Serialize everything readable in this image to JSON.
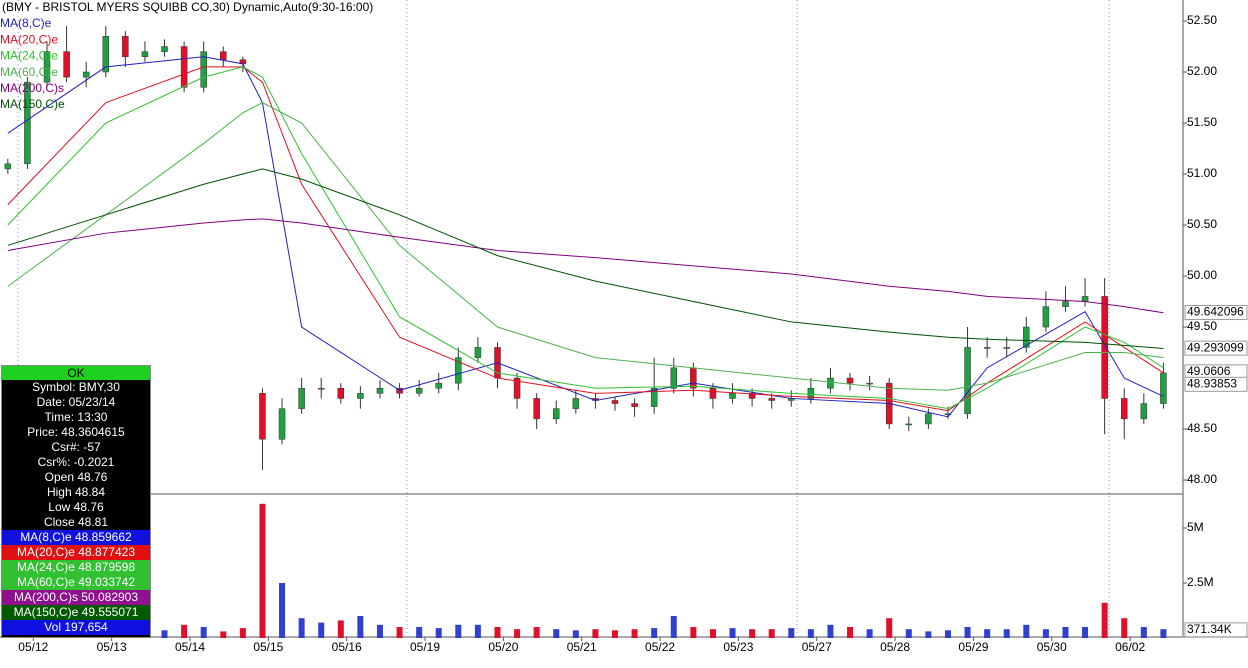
{
  "chart_data": {
    "type": "candlestick",
    "title": "(BMY - BRISTOL MYERS SQUIBB CO,30) Dynamic,Auto(9:30-16:00)",
    "xlim": [
      -0.4,
      60
    ],
    "xticks": [
      {
        "value": 1.3,
        "label": "05/12"
      },
      {
        "value": 5.3,
        "label": "05/13"
      },
      {
        "value": 9.3,
        "label": "05/14"
      },
      {
        "value": 13.3,
        "label": "05/15"
      },
      {
        "value": 17.3,
        "label": "05/16"
      },
      {
        "value": 21.3,
        "label": "05/19"
      },
      {
        "value": 25.3,
        "label": "05/20"
      },
      {
        "value": 29.3,
        "label": "05/21"
      },
      {
        "value": 33.3,
        "label": "05/22"
      },
      {
        "value": 37.3,
        "label": "05/23"
      },
      {
        "value": 41.3,
        "label": "05/27"
      },
      {
        "value": 45.3,
        "label": "05/28"
      },
      {
        "value": 49.3,
        "label": "05/29"
      },
      {
        "value": 53.3,
        "label": "05/30"
      },
      {
        "value": 57.3,
        "label": "06/02"
      }
    ],
    "ylim": [
      47.873,
      52.706
    ],
    "yticks": [
      {
        "value": 52.5,
        "label": "52.50"
      },
      {
        "value": 52,
        "label": "52.00"
      },
      {
        "value": 51.5,
        "label": "51.50"
      },
      {
        "value": 51,
        "label": "51.00"
      },
      {
        "value": 50.5,
        "label": "50.50"
      },
      {
        "value": 50,
        "label": "50.00"
      },
      {
        "value": 49.5,
        "label": "49.50"
      },
      {
        "value": 48.5,
        "label": "48.50"
      },
      {
        "value": 48,
        "label": "48.00"
      }
    ],
    "price_markers": [
      49.642096,
      49.293099,
      49.0606,
      48.93853
    ],
    "up_color": "#20a040",
    "down_color": "#e0102a",
    "open": [
      51.05,
      51.1,
      51.9,
      52.2,
      51.95,
      52,
      52.35,
      52.15,
      52.2,
      52.25,
      51.85,
      52.2,
      52.12,
      48.85,
      48.4,
      48.7,
      48.9,
      48.9,
      48.8,
      48.85,
      48.9,
      48.85,
      48.9,
      48.95,
      49.2,
      49.3,
      49,
      48.8,
      48.6,
      48.7,
      48.8,
      48.78,
      48.75,
      48.72,
      48.9,
      49.1,
      48.9,
      48.8,
      48.85,
      48.8,
      48.78,
      48.8,
      48.9,
      49,
      48.95,
      48.95,
      48.55,
      48.55,
      48.65,
      48.65,
      49.3,
      49.3,
      49.3,
      49.5,
      49.7,
      49.75,
      49.8,
      48.8,
      48.6,
      48.75
    ],
    "high": [
      51.15,
      51.95,
      52.3,
      52.45,
      52.1,
      52.45,
      52.4,
      52.3,
      52.32,
      52.3,
      52.3,
      52.25,
      52.15,
      48.9,
      48.8,
      49,
      49,
      48.95,
      48.92,
      48.98,
      48.95,
      48.98,
      49.05,
      49.3,
      49.4,
      49.35,
      49.05,
      48.85,
      48.78,
      48.88,
      48.85,
      48.82,
      48.8,
      49.2,
      49.2,
      49.15,
      48.95,
      48.95,
      48.9,
      48.85,
      48.88,
      49,
      49.1,
      49.05,
      49.02,
      49,
      48.62,
      48.7,
      48.72,
      49.5,
      49.4,
      49.4,
      49.6,
      49.85,
      49.9,
      49.98,
      49.98,
      48.9,
      48.85,
      49.15
    ],
    "low": [
      51,
      51.05,
      51.85,
      51.9,
      51.85,
      51.95,
      52.05,
      52.1,
      52.15,
      51.8,
      51.8,
      52.05,
      52,
      48.1,
      48.35,
      48.65,
      48.8,
      48.75,
      48.7,
      48.8,
      48.8,
      48.82,
      48.85,
      48.88,
      49.15,
      48.9,
      48.7,
      48.5,
      48.55,
      48.65,
      48.7,
      48.68,
      48.62,
      48.65,
      48.85,
      48.82,
      48.7,
      48.75,
      48.72,
      48.7,
      48.72,
      48.75,
      48.85,
      48.88,
      48.88,
      48.5,
      48.48,
      48.5,
      48.6,
      48.6,
      49.2,
      49.2,
      49.25,
      49.45,
      49.65,
      49.7,
      48.45,
      48.4,
      48.55,
      48.7
    ],
    "close": [
      51.1,
      51.9,
      52.2,
      51.95,
      52,
      52.35,
      52.15,
      52.2,
      52.25,
      51.85,
      52.2,
      52.12,
      52.08,
      48.4,
      48.7,
      48.9,
      48.9,
      48.8,
      48.85,
      48.9,
      48.85,
      48.9,
      48.95,
      49.2,
      49.3,
      49,
      48.8,
      48.6,
      48.7,
      48.8,
      48.78,
      48.75,
      48.72,
      48.9,
      49.1,
      48.9,
      48.8,
      48.85,
      48.8,
      48.78,
      48.8,
      48.9,
      49,
      48.95,
      48.95,
      48.55,
      48.55,
      48.65,
      48.65,
      49.3,
      49.3,
      49.3,
      49.5,
      49.7,
      49.75,
      49.8,
      48.8,
      48.6,
      48.75,
      49.05
    ],
    "series": [
      {
        "name": "MA(8,C)e",
        "color": "#2020c0",
        "x": [
          0,
          5,
          10,
          12,
          13,
          15,
          20,
          25,
          30,
          35,
          40,
          45,
          48,
          50,
          55,
          57,
          59
        ],
        "values": [
          51.4,
          52.05,
          52.15,
          52.08,
          51.7,
          49.5,
          48.88,
          49.15,
          48.78,
          48.95,
          48.8,
          48.75,
          48.62,
          49.1,
          49.65,
          49,
          48.82
        ]
      },
      {
        "name": "MA(20,C)e",
        "color": "#e01020",
        "x": [
          0,
          5,
          10,
          12,
          13,
          15,
          20,
          25,
          30,
          35,
          40,
          45,
          48,
          50,
          55,
          57,
          59
        ],
        "values": [
          50.7,
          51.7,
          52.05,
          52.05,
          51.9,
          50.9,
          49.4,
          49,
          48.85,
          48.88,
          48.82,
          48.78,
          48.68,
          48.95,
          49.55,
          49.3,
          49.05
        ]
      },
      {
        "name": "MA(24,C)e",
        "color": "#30c030",
        "x": [
          0,
          5,
          10,
          12,
          13,
          15,
          20,
          25,
          30,
          35,
          40,
          45,
          48,
          50,
          55,
          57,
          59
        ],
        "values": [
          50.5,
          51.5,
          51.95,
          52.05,
          51.95,
          51.2,
          49.6,
          49.05,
          48.9,
          48.92,
          48.85,
          48.8,
          48.7,
          48.9,
          49.5,
          49.35,
          49.1
        ]
      },
      {
        "name": "MA(60,C)e",
        "color": "#50b050",
        "x": [
          0,
          5,
          10,
          12,
          13,
          15,
          20,
          25,
          30,
          35,
          40,
          45,
          48,
          50,
          55,
          57,
          59
        ],
        "values": [
          49.9,
          50.6,
          51.3,
          51.6,
          51.7,
          51.5,
          50.3,
          49.5,
          49.2,
          49.1,
          49,
          48.9,
          48.88,
          48.95,
          49.25,
          49.25,
          49.2
        ]
      },
      {
        "name": "MA(200,C)s",
        "color": "#800080",
        "x": [
          0,
          5,
          10,
          12,
          13,
          15,
          20,
          25,
          30,
          35,
          40,
          45,
          48,
          50,
          55,
          57,
          59
        ],
        "values": [
          50.25,
          50.42,
          50.52,
          50.55,
          50.56,
          50.52,
          50.38,
          50.25,
          50.18,
          50.1,
          50.02,
          49.9,
          49.85,
          49.8,
          49.75,
          49.7,
          49.64
        ]
      },
      {
        "name": "MA(150,C)e",
        "color": "#005000",
        "x": [
          0,
          5,
          10,
          12,
          13,
          15,
          20,
          25,
          30,
          35,
          40,
          45,
          48,
          50,
          55,
          57,
          59
        ],
        "values": [
          50.3,
          50.6,
          50.9,
          51,
          51.05,
          50.95,
          50.6,
          50.2,
          49.95,
          49.75,
          49.55,
          49.45,
          49.4,
          49.38,
          49.35,
          49.32,
          49.29
        ]
      }
    ],
    "volume": {
      "up_color": "#3040d0",
      "down_color": "#e0102a",
      "ylim": [
        0,
        6500000
      ],
      "yticks": [
        {
          "value": 5000000,
          "label": "5M"
        },
        {
          "value": 2500000,
          "label": "2.5M"
        }
      ],
      "marker": {
        "value": 371340,
        "label": "371.34K"
      },
      "values": [
        500000,
        400000,
        350000,
        300000,
        400000,
        350000,
        300000,
        300000,
        350000,
        600000,
        500000,
        300000,
        450000,
        6100000,
        2500000,
        900000,
        700000,
        800000,
        1000000,
        600000,
        500000,
        500000,
        450000,
        600000,
        600000,
        500000,
        400000,
        500000,
        400000,
        350000,
        400000,
        350000,
        400000,
        450000,
        1000000,
        500000,
        400000,
        450000,
        400000,
        400000,
        450000,
        400000,
        600000,
        500000,
        400000,
        900000,
        400000,
        300000,
        350000,
        500000,
        400000,
        400000,
        600000,
        400000,
        500000,
        500000,
        1600000,
        900000,
        500000,
        400000
      ]
    }
  },
  "info_panel": {
    "header": "OK",
    "rows": [
      "Symbol: BMY,30",
      "Date: 05/23/14",
      "Time: 13:30",
      "Price: 48.3604615",
      "Csr#: -57",
      "Csr%: -0.2021",
      "Open 48.76",
      "High 48.84",
      "Low 48.76",
      "Close 48.81"
    ],
    "ma_rows": [
      "MA(8,C)e 48.859662",
      "MA(20,C)e 48.877423",
      "MA(24,C)e 48.879598",
      "MA(60,C)e 49.033742",
      "MA(200,C)s 50.082903",
      "MA(150,C)e 49.555071",
      "Vol 197,654"
    ]
  }
}
